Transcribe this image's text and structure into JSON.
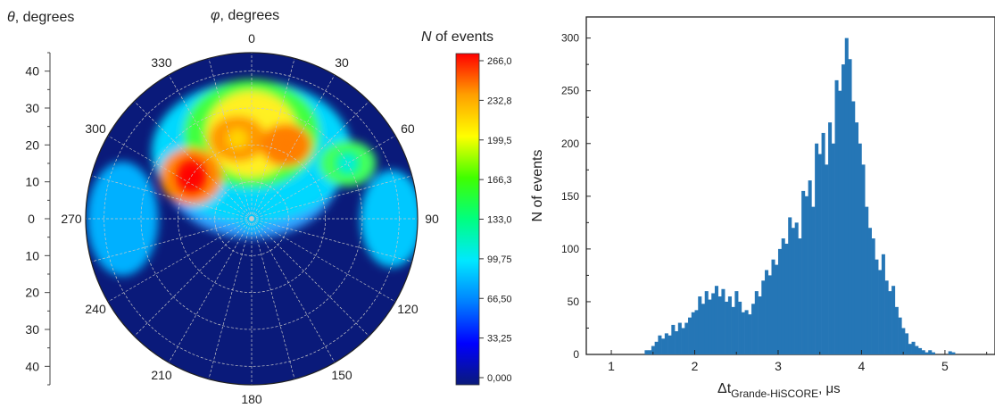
{
  "chart_data": [
    {
      "type": "heatmap",
      "subtype": "polar",
      "theta_label_sym": "θ",
      "theta_label_rest": ", degrees",
      "phi_label_sym": "φ",
      "phi_label_rest": ", degrees",
      "angular_ticks": [
        "0",
        "30",
        "60",
        "90",
        "120",
        "150",
        "180",
        "210",
        "240",
        "270",
        "300",
        "330"
      ],
      "radial_ticks_top": [
        "40",
        "30",
        "20",
        "10"
      ],
      "radial_ticks_bottom": [
        "10",
        "20",
        "30",
        "40"
      ],
      "radial_center_tick": "0",
      "radial_range": [
        0,
        45
      ],
      "colorbar": {
        "label_sym": "N",
        "label_rest": " of events",
        "ticks": [
          "0,000",
          "33,25",
          "66,50",
          "99,75",
          "133,0",
          "166,3",
          "199,5",
          "232,8",
          "266,0"
        ],
        "range": [
          0,
          266
        ],
        "colors": [
          "#0a1a7a",
          "#0000ff",
          "#0080ff",
          "#00e8ff",
          "#00ff80",
          "#40ff00",
          "#ffff00",
          "#ffa000",
          "#ff0000"
        ]
      },
      "hotspots": [
        {
          "phi": 305,
          "theta": 20,
          "value": 266
        },
        {
          "phi": 25,
          "theta": 22,
          "value": 240
        },
        {
          "phi": 350,
          "theta": 22,
          "value": 215
        },
        {
          "phi": 60,
          "theta": 30,
          "value": 110
        }
      ]
    },
    {
      "type": "bar",
      "xlabel_main": "Δt",
      "xlabel_sub": "Grande-HiSCORE",
      "xlabel_unit": ", μs",
      "ylabel": "N of events",
      "xlim": [
        0.7,
        5.6
      ],
      "ylim": [
        0,
        320
      ],
      "xticks": [
        "1",
        "2",
        "3",
        "4",
        "5"
      ],
      "yticks": [
        "0",
        "50",
        "100",
        "150",
        "200",
        "250",
        "300"
      ],
      "bar_color": "#2576b6",
      "bin_width": 0.04,
      "x": [
        1.4,
        1.44,
        1.48,
        1.52,
        1.56,
        1.6,
        1.64,
        1.68,
        1.72,
        1.76,
        1.8,
        1.84,
        1.88,
        1.92,
        1.96,
        2.0,
        2.04,
        2.08,
        2.12,
        2.16,
        2.2,
        2.24,
        2.28,
        2.32,
        2.36,
        2.4,
        2.44,
        2.48,
        2.52,
        2.56,
        2.6,
        2.64,
        2.68,
        2.72,
        2.76,
        2.8,
        2.84,
        2.88,
        2.92,
        2.96,
        3.0,
        3.04,
        3.08,
        3.12,
        3.16,
        3.2,
        3.24,
        3.28,
        3.32,
        3.36,
        3.4,
        3.44,
        3.48,
        3.52,
        3.56,
        3.6,
        3.64,
        3.68,
        3.72,
        3.76,
        3.8,
        3.84,
        3.88,
        3.92,
        3.96,
        4.0,
        4.04,
        4.08,
        4.12,
        4.16,
        4.2,
        4.24,
        4.28,
        4.32,
        4.36,
        4.4,
        4.44,
        4.48,
        4.52,
        4.56,
        4.6,
        4.64,
        4.68,
        4.72,
        4.76,
        4.8,
        4.84,
        4.88,
        4.92,
        4.96,
        5.0,
        5.04,
        5.08
      ],
      "values": [
        4,
        4,
        8,
        12,
        18,
        15,
        20,
        18,
        28,
        22,
        30,
        25,
        30,
        35,
        40,
        42,
        55,
        48,
        60,
        52,
        58,
        65,
        55,
        62,
        50,
        55,
        45,
        60,
        50,
        40,
        42,
        38,
        48,
        60,
        55,
        70,
        80,
        75,
        90,
        85,
        100,
        110,
        105,
        130,
        120,
        125,
        110,
        155,
        150,
        165,
        140,
        200,
        190,
        210,
        180,
        220,
        200,
        260,
        250,
        275,
        300,
        280,
        240,
        220,
        200,
        180,
        140,
        120,
        110,
        90,
        80,
        95,
        70,
        60,
        65,
        45,
        35,
        25,
        20,
        10,
        12,
        8,
        6,
        4,
        2,
        4,
        2,
        0,
        0,
        0,
        0,
        3,
        2
      ]
    }
  ]
}
